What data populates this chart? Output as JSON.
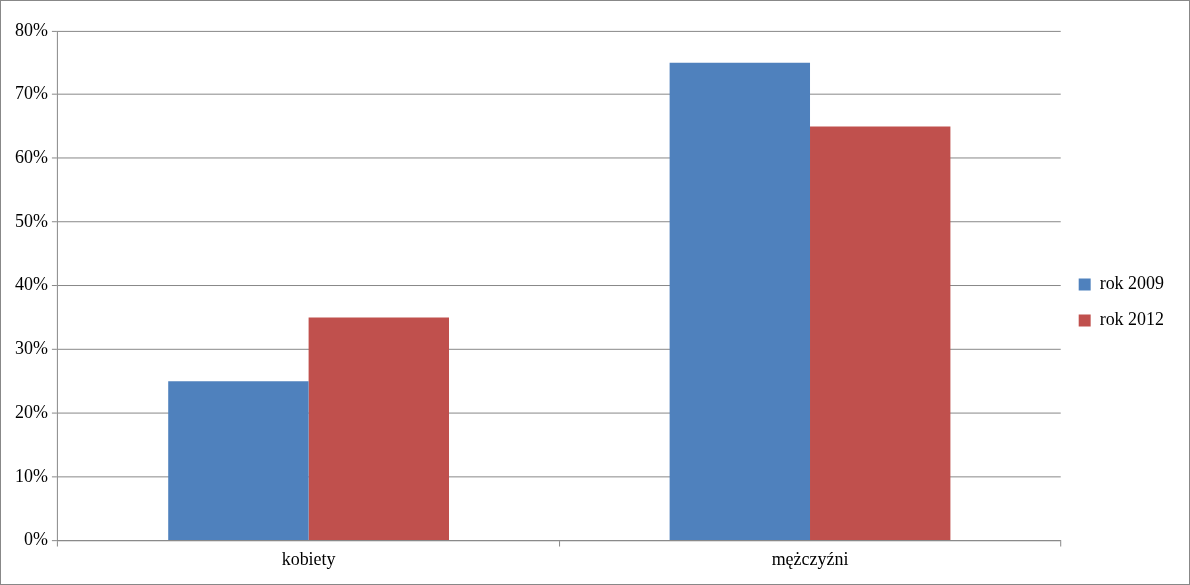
{
  "chart_data": {
    "type": "bar",
    "categories": [
      "kobiety",
      "mężczyźni"
    ],
    "series": [
      {
        "name": "rok 2009",
        "color": "#4f81bd",
        "values": [
          25,
          75
        ]
      },
      {
        "name": "rok 2012",
        "color": "#c0504d",
        "values": [
          35,
          65
        ]
      }
    ],
    "ylim": [
      0,
      80
    ],
    "yticks": [
      {
        "value": 0,
        "label": "0%"
      },
      {
        "value": 10,
        "label": "10%"
      },
      {
        "value": 20,
        "label": "20%"
      },
      {
        "value": 30,
        "label": "30%"
      },
      {
        "value": 40,
        "label": "40%"
      },
      {
        "value": 50,
        "label": "50%"
      },
      {
        "value": 60,
        "label": "60%"
      },
      {
        "value": 70,
        "label": "70%"
      },
      {
        "value": 80,
        "label": "80%"
      }
    ],
    "grid": "y",
    "legend": "right"
  }
}
